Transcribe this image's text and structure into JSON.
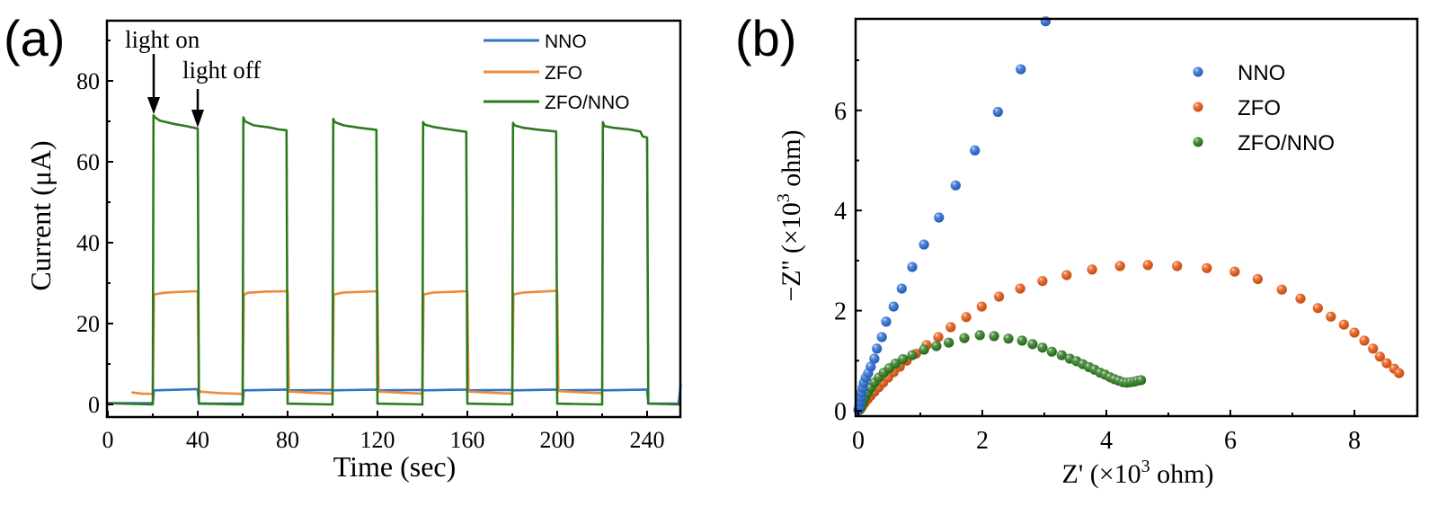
{
  "chart_data": [
    {
      "panel_label": "(a)",
      "type": "line",
      "title": "",
      "xlabel": "Time (sec)",
      "ylabel": "Current (μA)",
      "xlim": [
        0,
        255
      ],
      "ylim": [
        -5,
        95
      ],
      "xticks": [
        0,
        40,
        80,
        120,
        160,
        200,
        240
      ],
      "xtick_labels": [
        "0",
        "40",
        "80",
        "120",
        "160",
        "200",
        "240"
      ],
      "xminor": [
        20,
        60,
        100,
        140,
        180,
        220
      ],
      "yticks": [
        0,
        20,
        40,
        60,
        80
      ],
      "ytick_labels": [
        "0",
        "20",
        "40",
        "60",
        "80"
      ],
      "yminor": [
        10,
        30,
        50,
        70,
        90
      ],
      "grid": false,
      "legend_position": "top-right",
      "annotations": [
        {
          "text": "light on",
          "arrow_to": [
            20,
            72
          ]
        },
        {
          "text": "light off",
          "arrow_to": [
            40,
            68
          ]
        }
      ],
      "series": [
        {
          "name": "NNO",
          "color": "#2f74c9",
          "points": [
            [
              0,
              0.3
            ],
            [
              20,
              0.3
            ],
            [
              20.5,
              3.5
            ],
            [
              40,
              3.8
            ],
            [
              40.5,
              0.2
            ],
            [
              60,
              0.2
            ],
            [
              60.5,
              3.5
            ],
            [
              80,
              3.7
            ],
            [
              80.5,
              3.5
            ],
            [
              100,
              3.6
            ],
            [
              100.5,
              3.5
            ],
            [
              120,
              3.7
            ],
            [
              120.5,
              3.5
            ],
            [
              140,
              3.6
            ],
            [
              140.5,
              3.5
            ],
            [
              160,
              3.7
            ],
            [
              160.5,
              3.5
            ],
            [
              180,
              3.6
            ],
            [
              180.5,
              3.5
            ],
            [
              200,
              3.7
            ],
            [
              200.5,
              3.5
            ],
            [
              220,
              3.6
            ],
            [
              220.5,
              3.5
            ],
            [
              240,
              3.7
            ],
            [
              240.5,
              0.2
            ],
            [
              254,
              0.2
            ],
            [
              255,
              5
            ]
          ]
        },
        {
          "name": "ZFO",
          "color": "#ee8a3a",
          "points": [
            [
              10.5,
              3.0
            ],
            [
              15,
              2.7
            ],
            [
              20,
              2.6
            ],
            [
              20.5,
              27.2
            ],
            [
              25,
              27.6
            ],
            [
              30,
              27.8
            ],
            [
              40,
              28.0
            ],
            [
              40.5,
              3.2
            ],
            [
              45,
              3.0
            ],
            [
              50,
              2.8
            ],
            [
              60,
              2.6
            ],
            [
              60.5,
              27.0
            ],
            [
              62,
              27.6
            ],
            [
              70,
              27.9
            ],
            [
              80,
              28.0
            ],
            [
              80.5,
              3.2
            ],
            [
              90,
              2.9
            ],
            [
              100,
              2.7
            ],
            [
              100.5,
              27.2
            ],
            [
              105,
              27.7
            ],
            [
              120,
              28.0
            ],
            [
              120.5,
              3.2
            ],
            [
              130,
              2.9
            ],
            [
              140,
              2.7
            ],
            [
              140.5,
              27.2
            ],
            [
              145,
              27.7
            ],
            [
              160,
              28.0
            ],
            [
              160.5,
              3.2
            ],
            [
              170,
              2.9
            ],
            [
              180,
              2.7
            ],
            [
              180.5,
              27.2
            ],
            [
              185,
              27.7
            ],
            [
              200,
              28.1
            ],
            [
              200.5,
              3.3
            ],
            [
              210,
              3.0
            ],
            [
              220,
              2.8
            ]
          ]
        },
        {
          "name": "ZFO/NNO",
          "color": "#2d7a1e",
          "points": [
            [
              0,
              0.3
            ],
            [
              20,
              0.0
            ],
            [
              20.3,
              71.5
            ],
            [
              21,
              71.0
            ],
            [
              23,
              70.2
            ],
            [
              30,
              69.3
            ],
            [
              35,
              68.8
            ],
            [
              40,
              68.2
            ],
            [
              40.5,
              0.2
            ],
            [
              60,
              0.0
            ],
            [
              60.3,
              71.0
            ],
            [
              61,
              70.0
            ],
            [
              65,
              69.0
            ],
            [
              72,
              68.5
            ],
            [
              76,
              68.0
            ],
            [
              79.5,
              67.8
            ],
            [
              80,
              0.2
            ],
            [
              100,
              0.0
            ],
            [
              100.3,
              70.6
            ],
            [
              101,
              69.8
            ],
            [
              105,
              69.0
            ],
            [
              112,
              68.4
            ],
            [
              119.5,
              67.9
            ],
            [
              120,
              0.2
            ],
            [
              140,
              0.0
            ],
            [
              140.3,
              69.8
            ],
            [
              141,
              69.2
            ],
            [
              145,
              68.6
            ],
            [
              152,
              68.0
            ],
            [
              159.5,
              67.4
            ],
            [
              160,
              0.2
            ],
            [
              180,
              0.0
            ],
            [
              180.3,
              69.6
            ],
            [
              181,
              69.0
            ],
            [
              185,
              68.4
            ],
            [
              192,
              67.9
            ],
            [
              199.5,
              67.5
            ],
            [
              200,
              0.2
            ],
            [
              220,
              0.0
            ],
            [
              220.3,
              69.8
            ],
            [
              221,
              68.8
            ],
            [
              225,
              68.4
            ],
            [
              232,
              68.0
            ],
            [
              237,
              67.5
            ],
            [
              238,
              66.3
            ],
            [
              240,
              66.0
            ],
            [
              240.5,
              0.2
            ],
            [
              255,
              0.0
            ]
          ]
        }
      ]
    },
    {
      "panel_label": "(b)",
      "type": "scatter",
      "title": "",
      "xlabel": "Z' (×10³ ohm)",
      "ylabel": "−Z'' (×10³ ohm)",
      "xlabel_parts": [
        "Z' (×10",
        "3",
        " ohm)"
      ],
      "ylabel_parts": [
        "−Z'' (×10",
        "3",
        " ohm)"
      ],
      "xlim": [
        -0.05,
        9.0
      ],
      "ylim": [
        -0.1,
        7.8
      ],
      "xticks": [
        0,
        2,
        4,
        6,
        8
      ],
      "xtick_labels": [
        "0",
        "2",
        "4",
        "6",
        "8"
      ],
      "xminor": [
        1,
        3,
        5,
        7
      ],
      "yticks": [
        0,
        2,
        4,
        6
      ],
      "ytick_labels": [
        "0",
        "2",
        "4",
        "6"
      ],
      "yminor": [
        1,
        3,
        5,
        7
      ],
      "grid": false,
      "legend_position": "top-right",
      "series": [
        {
          "name": "NNO",
          "color": "#2a6fdb",
          "points": [
            [
              0.0,
              0.02
            ],
            [
              0.02,
              0.1
            ],
            [
              0.03,
              0.18
            ],
            [
              0.04,
              0.27
            ],
            [
              0.05,
              0.36
            ],
            [
              0.07,
              0.46
            ],
            [
              0.09,
              0.56
            ],
            [
              0.12,
              0.66
            ],
            [
              0.16,
              0.75
            ],
            [
              0.2,
              0.88
            ],
            [
              0.26,
              1.04
            ],
            [
              0.3,
              1.24
            ],
            [
              0.38,
              1.47
            ],
            [
              0.45,
              1.78
            ],
            [
              0.57,
              2.08
            ],
            [
              0.7,
              2.44
            ],
            [
              0.87,
              2.87
            ],
            [
              1.06,
              3.32
            ],
            [
              1.3,
              3.86
            ],
            [
              1.57,
              4.5
            ],
            [
              1.88,
              5.2
            ],
            [
              2.25,
              5.97
            ],
            [
              2.62,
              6.82
            ],
            [
              3.02,
              7.78
            ]
          ]
        },
        {
          "name": "ZFO",
          "color": "#ee5a12",
          "points": [
            [
              0.02,
              0.02
            ],
            [
              0.06,
              0.08
            ],
            [
              0.1,
              0.15
            ],
            [
              0.15,
              0.23
            ],
            [
              0.2,
              0.3
            ],
            [
              0.26,
              0.38
            ],
            [
              0.33,
              0.47
            ],
            [
              0.4,
              0.56
            ],
            [
              0.48,
              0.66
            ],
            [
              0.57,
              0.77
            ],
            [
              0.67,
              0.88
            ],
            [
              0.78,
              1.0
            ],
            [
              0.93,
              1.14
            ],
            [
              1.1,
              1.31
            ],
            [
              1.29,
              1.47
            ],
            [
              1.49,
              1.67
            ],
            [
              1.74,
              1.87
            ],
            [
              1.99,
              2.08
            ],
            [
              2.27,
              2.28
            ],
            [
              2.61,
              2.44
            ],
            [
              2.97,
              2.59
            ],
            [
              3.36,
              2.71
            ],
            [
              3.77,
              2.82
            ],
            [
              4.22,
              2.89
            ],
            [
              4.67,
              2.91
            ],
            [
              5.14,
              2.89
            ],
            [
              5.62,
              2.85
            ],
            [
              6.07,
              2.78
            ],
            [
              6.44,
              2.63
            ],
            [
              6.83,
              2.42
            ],
            [
              7.13,
              2.24
            ],
            [
              7.41,
              2.05
            ],
            [
              7.62,
              1.88
            ],
            [
              7.83,
              1.72
            ],
            [
              8.0,
              1.56
            ],
            [
              8.16,
              1.4
            ],
            [
              8.3,
              1.24
            ],
            [
              8.41,
              1.08
            ],
            [
              8.52,
              0.95
            ],
            [
              8.64,
              0.84
            ],
            [
              8.72,
              0.75
            ]
          ]
        },
        {
          "name": "ZFO/NNO",
          "color": "#2e7d1f",
          "points": [
            [
              0.03,
              0.03
            ],
            [
              0.05,
              0.1
            ],
            [
              0.08,
              0.18
            ],
            [
              0.11,
              0.27
            ],
            [
              0.15,
              0.36
            ],
            [
              0.2,
              0.46
            ],
            [
              0.26,
              0.56
            ],
            [
              0.33,
              0.66
            ],
            [
              0.41,
              0.76
            ],
            [
              0.5,
              0.85
            ],
            [
              0.6,
              0.94
            ],
            [
              0.72,
              1.03
            ],
            [
              0.87,
              1.11
            ],
            [
              1.06,
              1.22
            ],
            [
              1.26,
              1.29
            ],
            [
              1.46,
              1.36
            ],
            [
              1.71,
              1.45
            ],
            [
              1.96,
              1.51
            ],
            [
              2.19,
              1.49
            ],
            [
              2.42,
              1.44
            ],
            [
              2.64,
              1.4
            ],
            [
              2.81,
              1.33
            ],
            [
              2.97,
              1.26
            ],
            [
              3.12,
              1.18
            ],
            [
              3.28,
              1.11
            ],
            [
              3.41,
              1.04
            ],
            [
              3.52,
              0.99
            ],
            [
              3.62,
              0.93
            ],
            [
              3.72,
              0.87
            ],
            [
              3.81,
              0.82
            ],
            [
              3.9,
              0.76
            ],
            [
              3.98,
              0.72
            ],
            [
              4.06,
              0.67
            ],
            [
              4.13,
              0.63
            ],
            [
              4.2,
              0.6
            ],
            [
              4.27,
              0.57
            ],
            [
              4.33,
              0.56
            ],
            [
              4.39,
              0.57
            ],
            [
              4.45,
              0.58
            ],
            [
              4.5,
              0.6
            ],
            [
              4.56,
              0.61
            ]
          ]
        }
      ]
    }
  ]
}
